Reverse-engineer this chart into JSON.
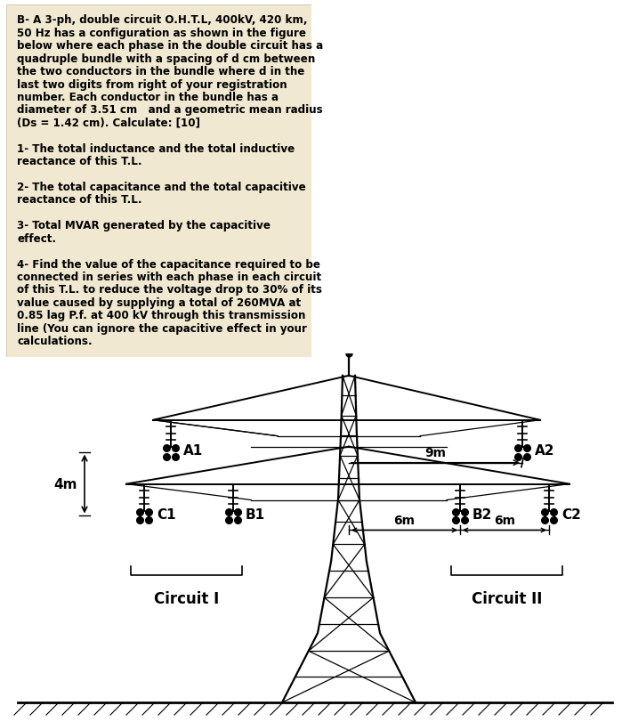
{
  "bg_color_top": "#f0e8d0",
  "text_lines": [
    "B- A 3-ph, double circuit O.H.T.L, 400kV, 420 km,",
    "50 Hz has a configuration as shown in the figure",
    "below where each phase in the double circuit has a",
    "quadruple bundle with a spacing of d cm between",
    "the two conductors in the bundle where d in the",
    "last two digits from right of your registration",
    "number. Each conductor in the bundle has a",
    "diameter of 3.51 cm   and a geometric mean radius",
    "(Ds = 1.42 cm). Calculate: [10]",
    "",
    "1- The total inductance and the total inductive",
    "reactance of this T.L.",
    "",
    "2- The total capacitance and the total capacitive",
    "reactance of this T.L.",
    "",
    "3- Total MVAR generated by the capacitive",
    "effect.",
    "",
    "4- Find the value of the capacitance required to be",
    "connected in series with each phase in each circuit",
    "of this T.L. to reduce the voltage drop to 30% of its",
    "value caused by supplying a total of 260MVA at",
    "0.85 lag P.f. at 400 kV through this transmission",
    "line (You can ignore the capacitive effect in your",
    "calculations."
  ],
  "tower_color": "#000000",
  "lw_main": 1.6,
  "lw_brace": 0.9,
  "lw_arm": 1.4
}
